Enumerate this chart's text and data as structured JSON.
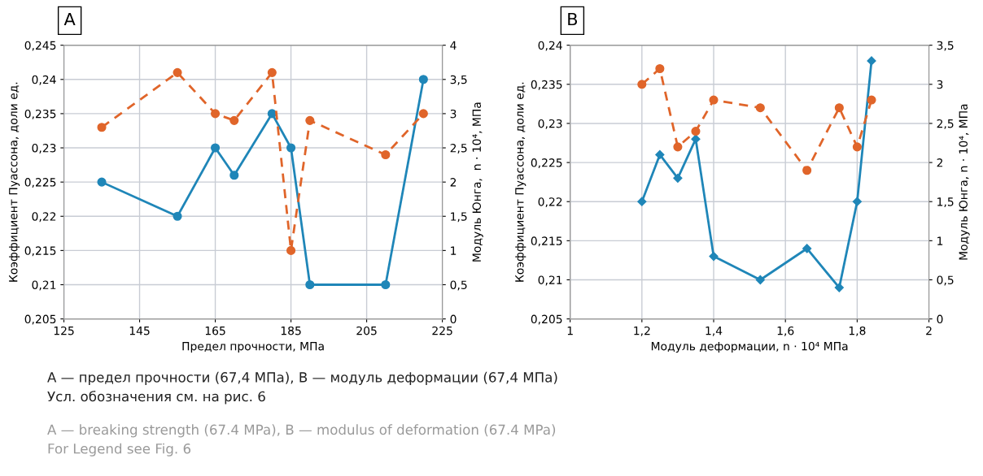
{
  "chart_data": [
    {
      "type": "line",
      "title": "A",
      "xlabel": "Предел прочности, МПа",
      "ylabel": "Коэффициент Пуассона, доли ед.",
      "y2label": "Модуль Юнга,  n · 10⁴, МПа",
      "xlim": [
        125,
        225
      ],
      "xticks": [
        125,
        145,
        165,
        185,
        205,
        225
      ],
      "ylim": [
        0.205,
        0.245
      ],
      "yticks": [
        {
          "value": 0.205,
          "label": "0,205"
        },
        {
          "value": 0.21,
          "label": "0,21"
        },
        {
          "value": 0.215,
          "label": "0,215"
        },
        {
          "value": 0.22,
          "label": "0,22"
        },
        {
          "value": 0.225,
          "label": "0,225"
        },
        {
          "value": 0.23,
          "label": "0,23"
        },
        {
          "value": 0.235,
          "label": "0,235"
        },
        {
          "value": 0.24,
          "label": "0,24"
        },
        {
          "value": 0.245,
          "label": "0,245"
        }
      ],
      "y2lim": [
        0,
        4
      ],
      "y2ticks": [
        0,
        {
          "value": 0.5,
          "label": "0,5"
        },
        1,
        {
          "value": 1.5,
          "label": "1,5"
        },
        2,
        {
          "value": 2.5,
          "label": "2,5"
        },
        3,
        {
          "value": 3.5,
          "label": "3,5"
        },
        4
      ],
      "grid": true,
      "series": [
        {
          "color": "#1f86b8",
          "marker": "circle",
          "line_style": "solid",
          "axis": "y",
          "x": [
            135,
            155,
            165,
            170,
            180,
            185,
            190,
            210,
            220
          ],
          "values": [
            0.225,
            0.22,
            0.23,
            0.226,
            0.235,
            0.23,
            0.21,
            0.21,
            0.24
          ]
        },
        {
          "color": "#e0652a",
          "marker": "circle",
          "line_style": "dashed",
          "axis": "y2",
          "x": [
            135,
            155,
            165,
            170,
            180,
            185,
            190,
            210,
            220
          ],
          "values": [
            2.8,
            3.6,
            3.0,
            2.9,
            3.6,
            1.0,
            2.9,
            2.4,
            3.0
          ]
        }
      ],
      "annotations": [
        "А — предел прочности (67,4 МПа), В — модуль деформации (67,4 МПа)",
        "Усл. обозначения см. на рис. 6",
        "A — breaking strength (67.4 MPa), B — modulus of deformation (67.4 MPa)",
        "For Legend see Fig. 6"
      ]
    },
    {
      "type": "line",
      "title": "B",
      "xlabel": "Модуль деформации, n · 10⁴ МПа",
      "ylabel": "Коэффициент Пуассона, доли ед.",
      "y2label": "Модуль Юнга, n · 10⁴, МПа",
      "xlim": [
        1,
        2
      ],
      "xticks": [
        1,
        {
          "value": 1.2,
          "label": "1,2"
        },
        {
          "value": 1.4,
          "label": "1,4"
        },
        {
          "value": 1.6,
          "label": "1,6"
        },
        {
          "value": 1.8,
          "label": "1,8"
        },
        2
      ],
      "ylim": [
        0.205,
        0.24
      ],
      "yticks": [
        {
          "value": 0.205,
          "label": "0,205"
        },
        {
          "value": 0.21,
          "label": "0,21"
        },
        {
          "value": 0.215,
          "label": "0,215"
        },
        {
          "value": 0.22,
          "label": "0,22"
        },
        {
          "value": 0.225,
          "label": "0,225"
        },
        {
          "value": 0.23,
          "label": "0,23"
        },
        {
          "value": 0.235,
          "label": "0,235"
        },
        {
          "value": 0.24,
          "label": "0,24"
        }
      ],
      "y2lim": [
        0,
        3.5
      ],
      "y2ticks": [
        0,
        {
          "value": 0.5,
          "label": "0,5"
        },
        1,
        {
          "value": 1.5,
          "label": "1,5"
        },
        2,
        {
          "value": 2.5,
          "label": "2,5"
        },
        3,
        {
          "value": 3.5,
          "label": "3,5"
        }
      ],
      "grid": true,
      "series": [
        {
          "color": "#1f86b8",
          "marker": "diamond",
          "line_style": "solid",
          "axis": "y",
          "x": [
            1.2,
            1.25,
            1.3,
            1.35,
            1.4,
            1.53,
            1.66,
            1.75,
            1.8,
            1.84
          ],
          "values": [
            0.22,
            0.226,
            0.223,
            0.228,
            0.213,
            0.21,
            0.214,
            0.209,
            0.22,
            0.238
          ]
        },
        {
          "color": "#e0652a",
          "marker": "circle",
          "line_style": "dashed",
          "axis": "y2",
          "x": [
            1.2,
            1.25,
            1.3,
            1.35,
            1.4,
            1.53,
            1.66,
            1.75,
            1.8,
            1.84
          ],
          "values": [
            3.0,
            3.2,
            2.2,
            2.4,
            2.8,
            2.7,
            1.9,
            2.7,
            2.2,
            2.8
          ]
        }
      ]
    }
  ]
}
